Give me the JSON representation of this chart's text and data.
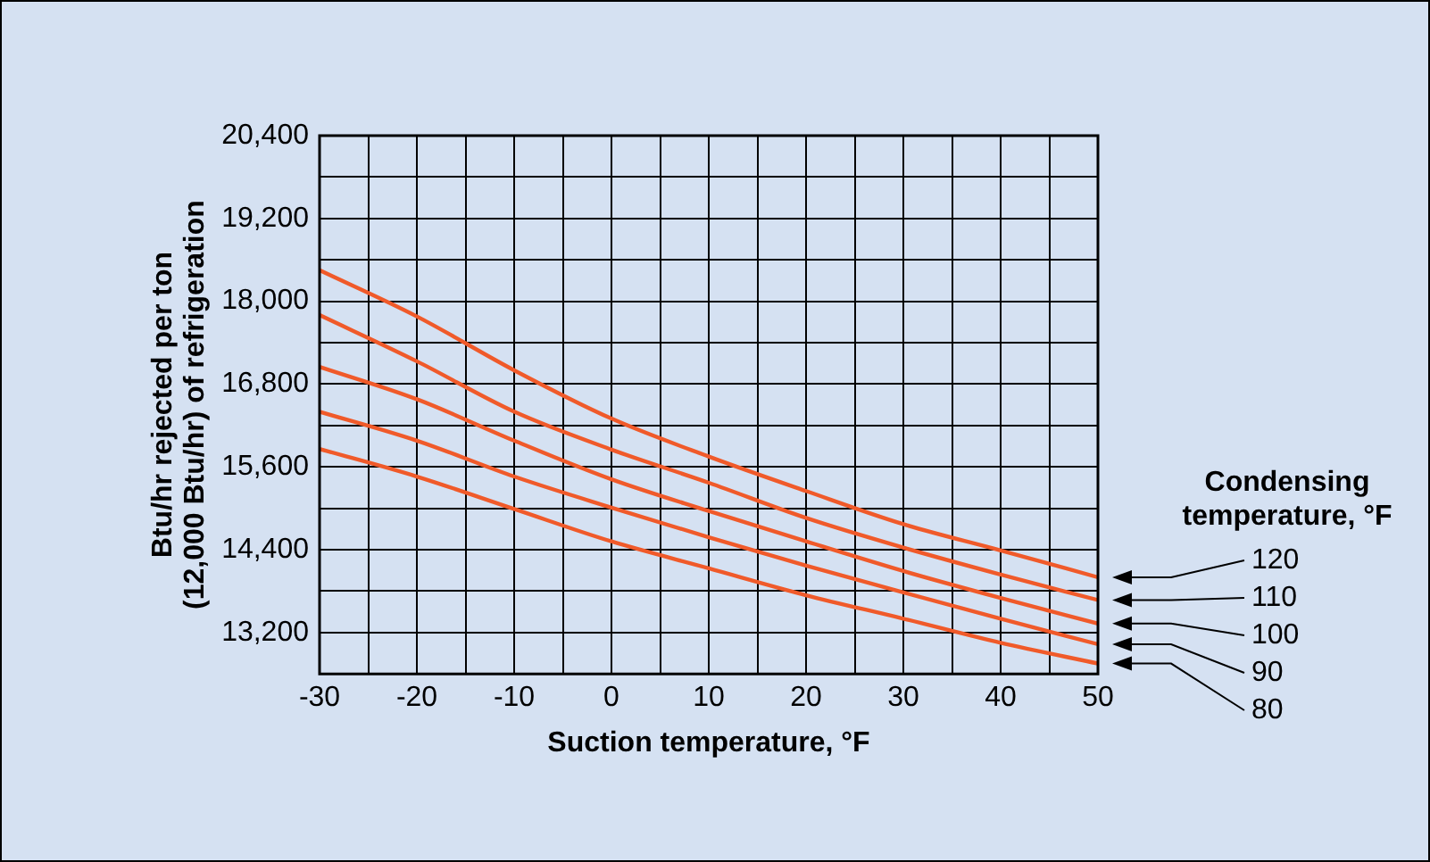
{
  "chart_data": {
    "type": "line",
    "xlabel": "Suction temperature, °F",
    "ylabel": "Btu/hr rejected per ton\n(12,000 Btu/hr) of refrigeration",
    "legend_title": "Condensing temperature, °F",
    "x": [
      -30,
      -20,
      -10,
      0,
      10,
      20,
      30,
      40,
      50
    ],
    "series": [
      {
        "name": "120",
        "color": "#f05a2a",
        "values": [
          18450,
          17780,
          17000,
          16300,
          15750,
          15250,
          14770,
          14390,
          14000
        ]
      },
      {
        "name": "110",
        "color": "#f05a2a",
        "values": [
          17800,
          17130,
          16400,
          15850,
          15370,
          14860,
          14430,
          14040,
          13670
        ]
      },
      {
        "name": "100",
        "color": "#f05a2a",
        "values": [
          17050,
          16580,
          15980,
          15420,
          14960,
          14520,
          14090,
          13700,
          13330
        ]
      },
      {
        "name": "90",
        "color": "#f05a2a",
        "values": [
          16400,
          15980,
          15460,
          15010,
          14580,
          14170,
          13780,
          13400,
          13030
        ]
      },
      {
        "name": "80",
        "color": "#f05a2a",
        "values": [
          15860,
          15460,
          14990,
          14520,
          14130,
          13740,
          13400,
          13050,
          12750
        ]
      }
    ],
    "xlim": [
      -30,
      50
    ],
    "xticks": [
      -30,
      {
        "value": -25,
        "label": null
      },
      -20,
      {
        "value": -15,
        "label": null
      },
      -10,
      {
        "value": -5,
        "label": null
      },
      0,
      {
        "value": 5,
        "label": null
      },
      10,
      {
        "value": 15,
        "label": null
      },
      20,
      {
        "value": 25,
        "label": null
      },
      30,
      {
        "value": 35,
        "label": null
      },
      40,
      {
        "value": 45,
        "label": null
      },
      50
    ],
    "ylim": [
      12600,
      20400
    ],
    "yticks": [
      {
        "value": 12600,
        "label": null
      },
      {
        "value": 13200,
        "label": "13,200"
      },
      {
        "value": 13800,
        "label": null
      },
      {
        "value": 14400,
        "label": "14,400"
      },
      {
        "value": 15000,
        "label": null
      },
      {
        "value": 15600,
        "label": "15,600"
      },
      {
        "value": 16200,
        "label": null
      },
      {
        "value": 16800,
        "label": "16,800"
      },
      {
        "value": 17400,
        "label": null
      },
      {
        "value": 18000,
        "label": "18,000"
      },
      {
        "value": 18600,
        "label": null
      },
      {
        "value": 19200,
        "label": "19,200"
      },
      {
        "value": 19800,
        "label": null
      },
      {
        "value": 20400,
        "label": "20,400"
      }
    ],
    "grid": true,
    "legend": false,
    "marker": "none",
    "line_style": "solid"
  }
}
